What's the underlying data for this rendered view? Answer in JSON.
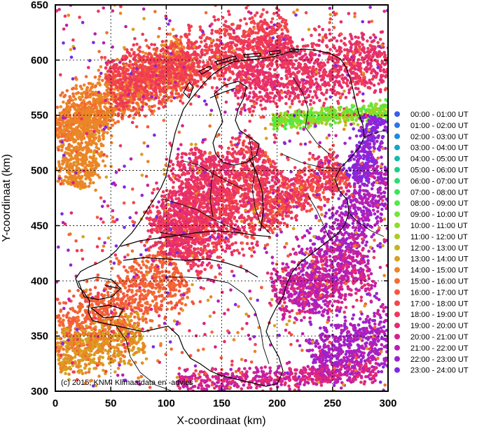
{
  "chart_data": {
    "type": "scatter",
    "title": "",
    "xlabel": "X-coordinaat (km)",
    "ylabel": "Y-coordinaat (km)",
    "xlim": [
      0,
      300
    ],
    "ylim": [
      300,
      650
    ],
    "xticks": [
      0,
      50,
      100,
      150,
      200,
      250,
      300
    ],
    "yticks": [
      300,
      350,
      400,
      450,
      500,
      550,
      600,
      650
    ],
    "grid": true,
    "legend_position": "right",
    "credit": "(c) 2015, KNMI Klimaatdata en -advies",
    "series": [
      {
        "name": "00:00 - 01:00 UT",
        "color": "#3b5ee6"
      },
      {
        "name": "01:00 - 02:00 UT",
        "color": "#2c74e8"
      },
      {
        "name": "02:00 - 03:00 UT",
        "color": "#1e8bdc"
      },
      {
        "name": "03:00 - 04:00 UT",
        "color": "#14a5c8"
      },
      {
        "name": "04:00 - 05:00 UT",
        "color": "#14bda8"
      },
      {
        "name": "05:00 - 06:00 UT",
        "color": "#1ccf8a"
      },
      {
        "name": "06:00 - 07:00 UT",
        "color": "#28dc70"
      },
      {
        "name": "07:00 - 08:00 UT",
        "color": "#36e659"
      },
      {
        "name": "08:00 - 09:00 UT",
        "color": "#4eea45"
      },
      {
        "name": "09:00 - 10:00 UT",
        "color": "#6ee636"
      },
      {
        "name": "10:00 - 11:00 UT",
        "color": "#8edc2a"
      },
      {
        "name": "11:00 - 12:00 UT",
        "color": "#aacd20"
      },
      {
        "name": "12:00 - 13:00 UT",
        "color": "#c2b61c"
      },
      {
        "name": "13:00 - 14:00 UT",
        "color": "#d8a01e"
      },
      {
        "name": "14:00 - 15:00 UT",
        "color": "#ea8626"
      },
      {
        "name": "15:00 - 16:00 UT",
        "color": "#f26d31"
      },
      {
        "name": "16:00 - 17:00 UT",
        "color": "#f5573d"
      },
      {
        "name": "17:00 - 18:00 UT",
        "color": "#f34649"
      },
      {
        "name": "18:00 - 19:00 UT",
        "color": "#ee385a"
      },
      {
        "name": "19:00 - 20:00 UT",
        "color": "#e42b73"
      },
      {
        "name": "20:00 - 21:00 UT",
        "color": "#d32290"
      },
      {
        "name": "21:00 - 22:00 UT",
        "color": "#bb1eae"
      },
      {
        "name": "22:00 - 23:00 UT",
        "color": "#9c22cc"
      },
      {
        "name": "23:00 - 24:00 UT",
        "color": "#7b2ae6"
      }
    ]
  }
}
